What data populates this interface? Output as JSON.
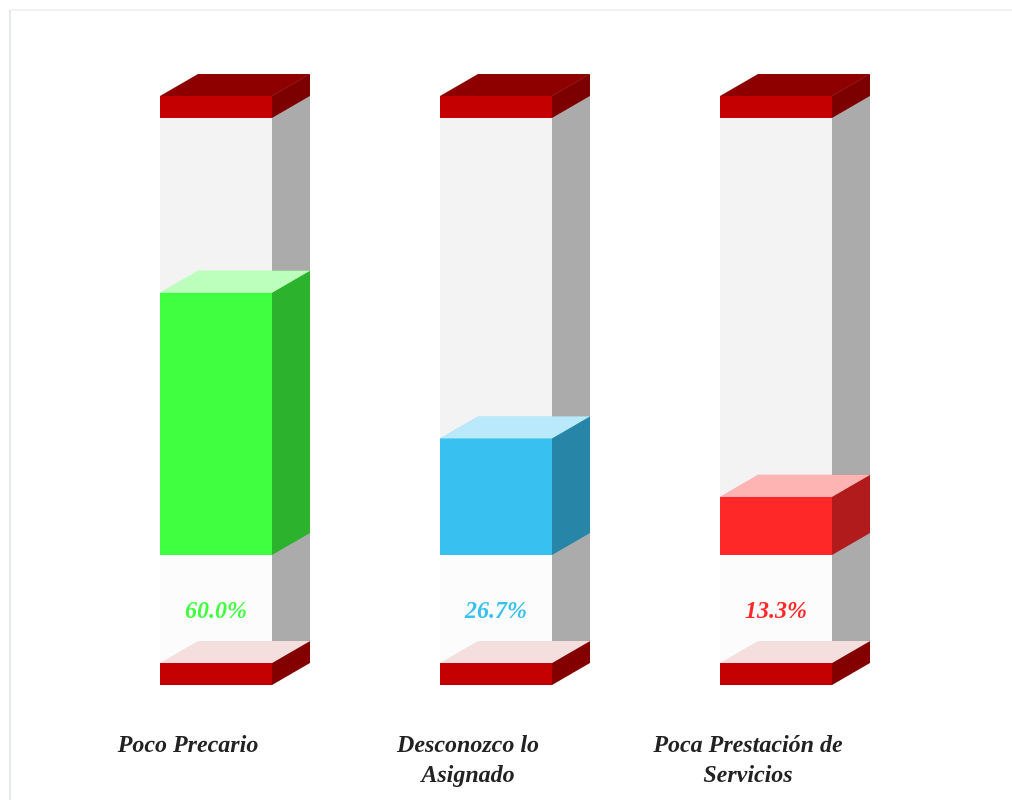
{
  "chart_data": {
    "type": "bar",
    "categories": [
      "Poco Precario",
      "Desconozco lo Asignado",
      "Poca Prestación de Servicios"
    ],
    "values": [
      60.0,
      26.7,
      13.3
    ],
    "value_labels": [
      "60.0%",
      "26.7%",
      "13.3%"
    ],
    "colors": [
      "#40ff40",
      "#38c0f0",
      "#ff2828"
    ],
    "ylim": [
      0,
      100
    ]
  }
}
